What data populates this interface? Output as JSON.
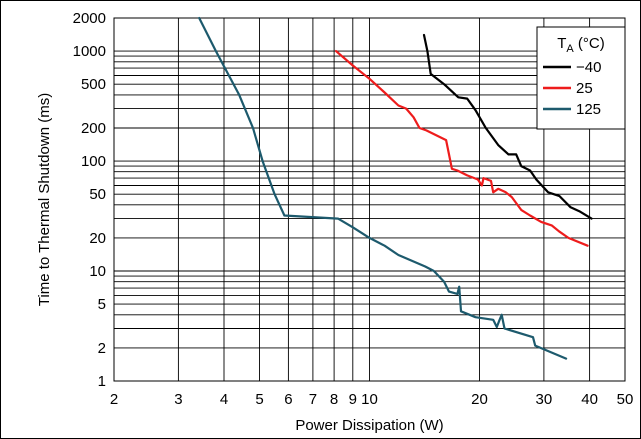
{
  "chart_data": {
    "type": "line",
    "xlabel": "Power Dissipation (W)",
    "ylabel": "Time to Thermal Shutdown (ms)",
    "xscale": "log",
    "yscale": "log",
    "xlim": [
      2,
      50
    ],
    "ylim": [
      1,
      2000
    ],
    "grid": true,
    "legend_position": "top-right",
    "legend_title_main": "T",
    "legend_title_sub": "A",
    "legend_title_unit": " (°C)",
    "x_ticks": [
      {
        "value": 2,
        "label": "2"
      },
      {
        "value": 3,
        "label": "3"
      },
      {
        "value": 4,
        "label": "4"
      },
      {
        "value": 5,
        "label": "5"
      },
      {
        "value": 6,
        "label": "6"
      },
      {
        "value": 7,
        "label": "7"
      },
      {
        "value": 8,
        "label": "8"
      },
      {
        "value": 9,
        "label": "9"
      },
      {
        "value": 10,
        "label": "10"
      },
      {
        "value": 20,
        "label": "20"
      },
      {
        "value": 30,
        "label": "30"
      },
      {
        "value": 40,
        "label": "40"
      },
      {
        "value": 50,
        "label": "50"
      }
    ],
    "y_ticks": [
      {
        "value": 1,
        "label": "1"
      },
      {
        "value": 2,
        "label": "2"
      },
      {
        "value": 5,
        "label": "5"
      },
      {
        "value": 10,
        "label": "10"
      },
      {
        "value": 20,
        "label": "20"
      },
      {
        "value": 50,
        "label": "50"
      },
      {
        "value": 100,
        "label": "100"
      },
      {
        "value": 200,
        "label": "200"
      },
      {
        "value": 500,
        "label": "500"
      },
      {
        "value": 1000,
        "label": "1000"
      },
      {
        "value": 2000,
        "label": "2000"
      }
    ],
    "x_grid": [
      2,
      3,
      4,
      5,
      6,
      7,
      8,
      9,
      10,
      20,
      30,
      40,
      50
    ],
    "y_grid": [
      1,
      2,
      3,
      4,
      5,
      6,
      7,
      8,
      9,
      10,
      20,
      30,
      40,
      50,
      60,
      70,
      80,
      90,
      100,
      200,
      300,
      400,
      500,
      600,
      700,
      800,
      900,
      1000,
      2000
    ],
    "series": [
      {
        "name": "−40",
        "color": "#000000",
        "points": [
          [
            14.1,
            1400
          ],
          [
            14.4,
            1000
          ],
          [
            14.7,
            620
          ],
          [
            16.0,
            500
          ],
          [
            17.5,
            380
          ],
          [
            18.5,
            370
          ],
          [
            19.5,
            290
          ],
          [
            20.8,
            200
          ],
          [
            22.5,
            140
          ],
          [
            24.0,
            115
          ],
          [
            25.2,
            115
          ],
          [
            26.0,
            90
          ],
          [
            27.5,
            82
          ],
          [
            28.6,
            68
          ],
          [
            30.8,
            52
          ],
          [
            33.1,
            48
          ],
          [
            35.5,
            38
          ],
          [
            37.5,
            35
          ],
          [
            40.5,
            30
          ]
        ]
      },
      {
        "name": "25",
        "color": "#ee1c1c",
        "points": [
          [
            8.1,
            1000
          ],
          [
            9.0,
            740
          ],
          [
            10.0,
            560
          ],
          [
            11.0,
            420
          ],
          [
            12.0,
            320
          ],
          [
            12.6,
            300
          ],
          [
            13.2,
            250
          ],
          [
            13.7,
            200
          ],
          [
            14.3,
            190
          ],
          [
            16.2,
            155
          ],
          [
            16.5,
            115
          ],
          [
            16.8,
            85
          ],
          [
            17.4,
            82
          ],
          [
            18.5,
            74
          ],
          [
            19.8,
            68
          ],
          [
            20.3,
            60
          ],
          [
            20.5,
            70
          ],
          [
            21.5,
            66
          ],
          [
            21.8,
            52
          ],
          [
            22.5,
            56
          ],
          [
            23.6,
            52
          ],
          [
            24.5,
            47
          ],
          [
            26.0,
            36
          ],
          [
            27.5,
            32
          ],
          [
            29.5,
            28
          ],
          [
            31.5,
            26
          ],
          [
            33.0,
            23
          ],
          [
            35.0,
            20
          ],
          [
            39.5,
            17
          ]
        ]
      },
      {
        "name": "125",
        "color": "#1d5a6d",
        "points": [
          [
            3.42,
            2000
          ],
          [
            3.8,
            1000
          ],
          [
            4.4,
            400
          ],
          [
            4.8,
            200
          ],
          [
            5.1,
            100
          ],
          [
            5.5,
            50
          ],
          [
            5.85,
            32
          ],
          [
            8.2,
            30
          ],
          [
            9.0,
            25
          ],
          [
            10.0,
            20
          ],
          [
            11.0,
            17
          ],
          [
            12.0,
            14
          ],
          [
            14.2,
            11
          ],
          [
            15.0,
            10
          ],
          [
            16.0,
            8
          ],
          [
            16.5,
            6.5
          ],
          [
            17.4,
            6.2
          ],
          [
            17.6,
            7.2
          ],
          [
            17.8,
            4.3
          ],
          [
            19.5,
            3.8
          ],
          [
            21.8,
            3.6
          ],
          [
            22.3,
            3.1
          ],
          [
            22.7,
            3.6
          ],
          [
            23.0,
            4.0
          ],
          [
            23.4,
            3.0
          ],
          [
            28.0,
            2.5
          ],
          [
            28.4,
            2.1
          ],
          [
            34.5,
            1.6
          ]
        ]
      }
    ]
  }
}
